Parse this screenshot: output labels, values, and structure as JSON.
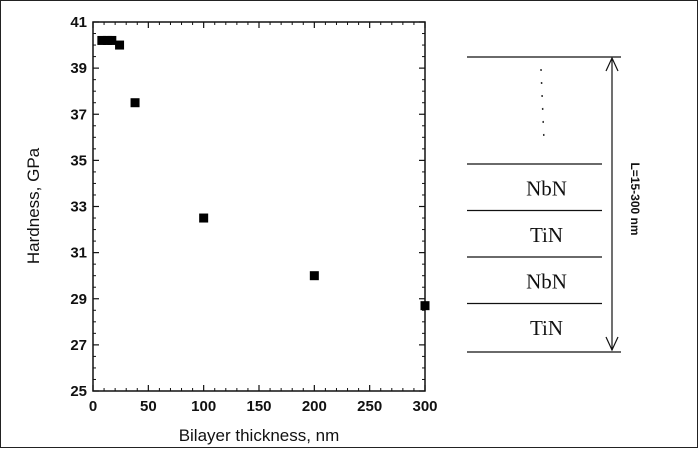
{
  "chart_data": {
    "type": "scatter",
    "title": "",
    "xlabel": "Bilayer thickness, nm",
    "ylabel": "Hardness, GPa",
    "xlim": [
      0,
      300
    ],
    "ylim": [
      25,
      41
    ],
    "xticks": [
      0,
      50,
      100,
      150,
      200,
      250,
      300
    ],
    "yticks": [
      25,
      27,
      29,
      31,
      33,
      35,
      37,
      39,
      41
    ],
    "grid": false,
    "marker": "square",
    "series": [
      {
        "x": [
          8,
          13,
          17,
          24,
          38,
          100,
          200,
          300
        ],
        "y": [
          40.2,
          40.2,
          40.2,
          40.0,
          37.5,
          32.5,
          30.0,
          28.7
        ]
      }
    ]
  },
  "schematic": {
    "layers": [
      "NbN",
      "TiN",
      "NbN",
      "TiN"
    ],
    "dimension_label": "L=15-300 nm"
  }
}
